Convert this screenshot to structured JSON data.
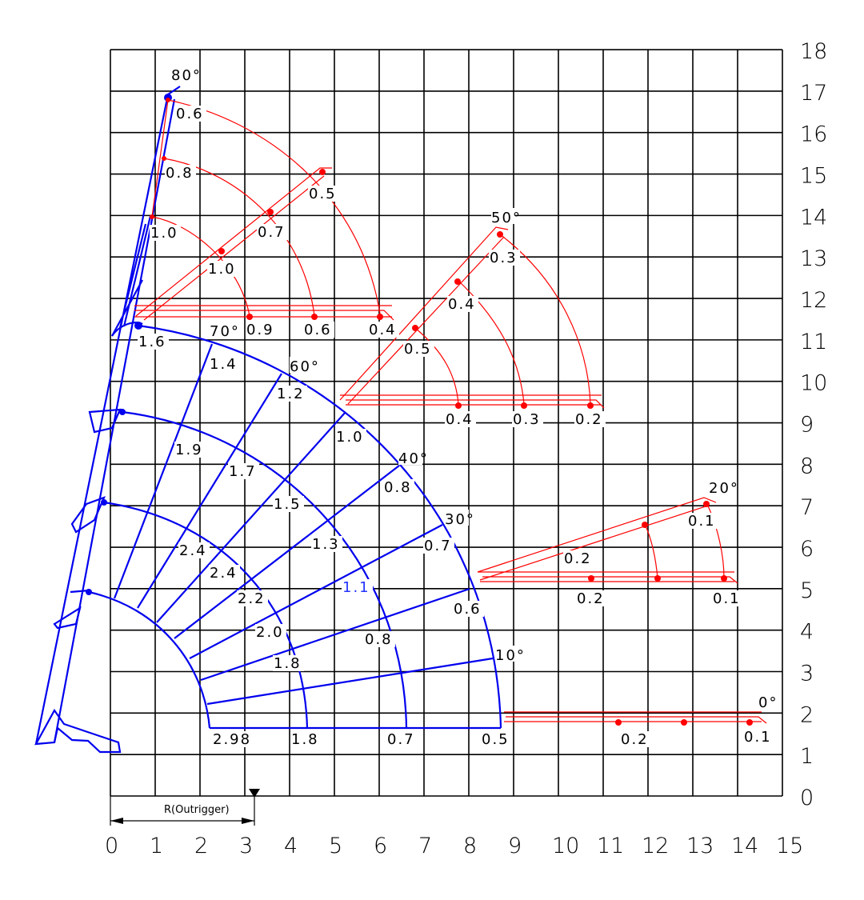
{
  "colors": {
    "grid": "#000000",
    "envelope": "#0000ee",
    "boom": "#ff0000"
  },
  "axes": {
    "x_ticks": [
      "0",
      "1",
      "2",
      "3",
      "4",
      "5",
      "6",
      "7",
      "8",
      "9",
      "10",
      "11",
      "12",
      "13",
      "14",
      "15"
    ],
    "y_ticks": [
      "0",
      "1",
      "2",
      "3",
      "4",
      "5",
      "6",
      "7",
      "8",
      "9",
      "10",
      "11",
      "12",
      "13",
      "14",
      "15",
      "16",
      "17",
      "18"
    ],
    "outrigger_label": "R(Outrigger)"
  },
  "angles": [
    "80°",
    "70°",
    "60°",
    "50°",
    "40°",
    "30°",
    "20°",
    "10°",
    "0°"
  ],
  "upper_loads": [
    "0.6",
    "0.8",
    "1.0",
    "0.5",
    "0.7",
    "1.0",
    "0.9",
    "0.6",
    "0.4"
  ],
  "mid_loads": [
    "0.3",
    "0.4",
    "0.5",
    "0.4",
    "0.3",
    "0.2"
  ],
  "low_loads": [
    "0.1",
    "0.2",
    "0.2",
    "0.1"
  ],
  "base_loads": [
    "0.2",
    "0.1"
  ],
  "envelope_loads": [
    "1.6",
    "1.4",
    "1.2",
    "1.9",
    "1.7",
    "1.5",
    "1.0",
    "2.4",
    "2.4",
    "1.3",
    "0.8",
    "2.2",
    "0.7",
    "1.1",
    "2.0",
    "0.6",
    "0.8",
    "1.8",
    "2.98",
    "1.8",
    "0.7",
    "0.5"
  ]
}
